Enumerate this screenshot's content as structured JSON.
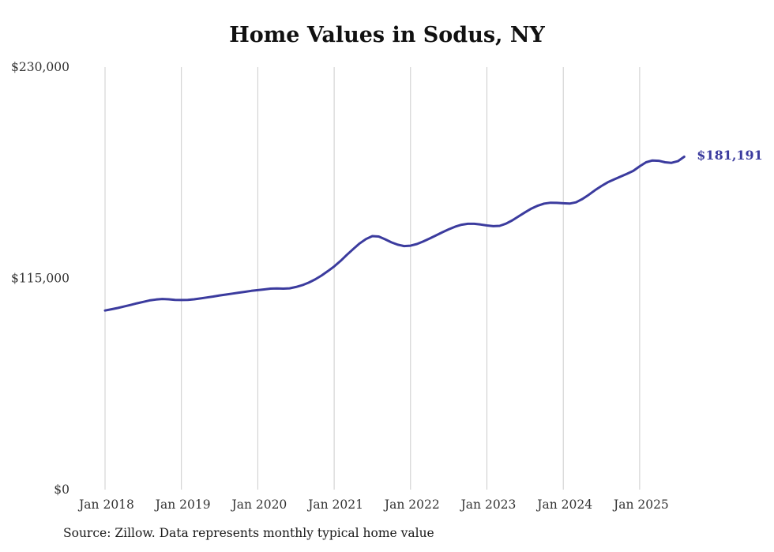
{
  "chart_data": {
    "type": "line",
    "title": "Home Values in Sodus, NY",
    "source": "Source: Zillow. Data represents monthly typical home value",
    "end_label": "$181,191",
    "series_name": "Typical home value",
    "x_start": "Jan 2018",
    "x_interval": "monthly",
    "x_tick_labels": [
      "Jan 2018",
      "Jan 2019",
      "Jan 2020",
      "Jan 2021",
      "Jan 2022",
      "Jan 2023",
      "Jan 2024",
      "Jan 2025"
    ],
    "y_ticks": [
      {
        "value": 0,
        "label": "$0"
      },
      {
        "value": 115000,
        "label": "$115,000"
      },
      {
        "value": 230000,
        "label": "$230,000"
      }
    ],
    "ylim": [
      0,
      230000
    ],
    "grid": "vertical-only",
    "legend": "none",
    "colors": {
      "line": "#3b3b9e",
      "grid": "#cccccc",
      "text": "#333333"
    },
    "values": [
      97500,
      98200,
      98900,
      99700,
      100500,
      101400,
      102200,
      103000,
      103500,
      103800,
      103600,
      103300,
      103200,
      103300,
      103600,
      104100,
      104600,
      105100,
      105700,
      106200,
      106700,
      107200,
      107700,
      108200,
      108600,
      109000,
      109400,
      109500,
      109400,
      109600,
      110300,
      111300,
      112700,
      114400,
      116500,
      118900,
      121500,
      124500,
      127800,
      131000,
      134000,
      136400,
      138000,
      137800,
      136300,
      134600,
      133300,
      132600,
      132800,
      133700,
      135100,
      136700,
      138400,
      140100,
      141700,
      143100,
      144200,
      144700,
      144700,
      144300,
      143800,
      143400,
      143600,
      144800,
      146600,
      148800,
      151000,
      153000,
      154600,
      155700,
      156200,
      156100,
      155900,
      155700,
      156400,
      158200,
      160500,
      163000,
      165300,
      167300,
      168900,
      170400,
      171900,
      173500,
      176000,
      178200,
      179200,
      179000,
      178200,
      177900,
      178800,
      181191
    ]
  }
}
